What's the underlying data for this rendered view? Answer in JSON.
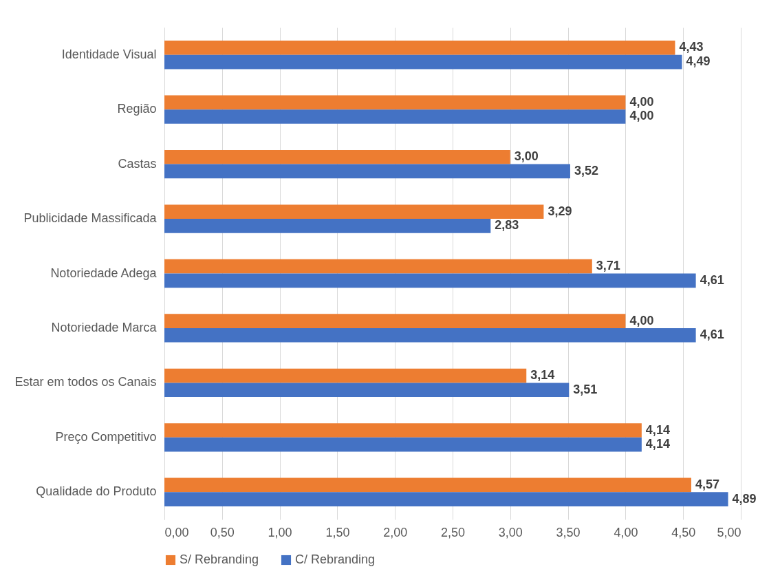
{
  "chart_data": {
    "type": "bar",
    "orientation": "horizontal",
    "categories": [
      "Identidade Visual",
      "Região",
      "Castas",
      "Publicidade Massificada",
      "Notoriedade Adega",
      "Notoriedade Marca",
      "Estar em todos os Canais",
      "Preço Competitivo",
      "Qualidade do Produto"
    ],
    "series": [
      {
        "name": "S/ Rebranding",
        "color": "#ed7d31",
        "values": [
          4.43,
          4.0,
          3.0,
          3.29,
          3.71,
          4.0,
          3.14,
          4.14,
          4.57
        ],
        "value_labels": [
          "4,43",
          "4,00",
          "3,00",
          "3,29",
          "3,71",
          "4,00",
          "3,14",
          "4,14",
          "4,57"
        ]
      },
      {
        "name": "C/ Rebranding",
        "color": "#4472c4",
        "values": [
          4.49,
          4.0,
          3.52,
          2.83,
          4.61,
          4.61,
          3.51,
          4.14,
          4.89
        ],
        "value_labels": [
          "4,49",
          "4,00",
          "3,52",
          "2,83",
          "4,61",
          "4,61",
          "3,51",
          "4,14",
          "4,89"
        ]
      }
    ],
    "xlim": [
      0,
      5
    ],
    "xticks": [
      {
        "value": 0,
        "label": "0,00"
      },
      {
        "value": 0.5,
        "label": "0,50"
      },
      {
        "value": 1,
        "label": "1,00"
      },
      {
        "value": 1.5,
        "label": "1,50"
      },
      {
        "value": 2,
        "label": "2,00"
      },
      {
        "value": 2.5,
        "label": "2,50"
      },
      {
        "value": 3,
        "label": "3,00"
      },
      {
        "value": 3.5,
        "label": "3,50"
      },
      {
        "value": 4,
        "label": "4,00"
      },
      {
        "value": 4.5,
        "label": "4,50"
      },
      {
        "value": 5,
        "label": "5,00"
      }
    ],
    "grid": "x",
    "legend": "bottom"
  }
}
